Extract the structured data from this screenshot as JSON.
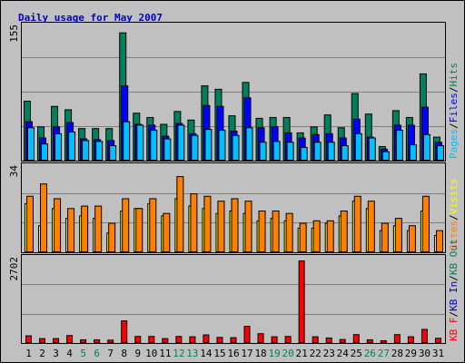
{
  "colors": {
    "background": "#c0c0c0",
    "panel": "#c0c0c0",
    "border": "#000000",
    "title": "#0000cc",
    "grid": "#808080",
    "hits": "#00805c",
    "files": "#0000ff",
    "pages": "#00c0ff",
    "visits": "#ffff00",
    "sites": "#ff8000",
    "kbf": "#ff0000",
    "kbin": "#0000cc",
    "kbout": "#00805c",
    "weekend": "#00805c",
    "weekday": "#000000"
  },
  "chart_data": {
    "type": "bar",
    "title": "Daily usage for May 2007",
    "categories": [
      "1",
      "2",
      "3",
      "4",
      "5",
      "6",
      "7",
      "8",
      "9",
      "10",
      "11",
      "12",
      "13",
      "14",
      "15",
      "16",
      "17",
      "18",
      "19",
      "20",
      "21",
      "22",
      "23",
      "24",
      "25",
      "26",
      "27",
      "28",
      "29",
      "30",
      "31"
    ],
    "weekend_days": [
      "5",
      "6",
      "12",
      "13",
      "19",
      "20",
      "26",
      "27"
    ],
    "panels": [
      {
        "id": "hits-panel",
        "max_label": "155",
        "ylim": [
          0,
          155
        ],
        "legend": [
          "Pages",
          "/",
          "Files",
          "/",
          "Hits"
        ],
        "series": [
          {
            "name": "Hits",
            "values": [
              70,
              40,
              64,
              60,
              38,
              38,
              38,
              150,
              56,
              51,
              43,
              58,
              48,
              88,
              84,
              53,
              92,
              50,
              51,
              51,
              33,
              40,
              54,
              39,
              79,
              55,
              17,
              59,
              51,
              102,
              28
            ]
          },
          {
            "name": "Files",
            "values": [
              46,
              27,
              40,
              45,
              26,
              25,
              24,
              88,
              43,
              42,
              29,
              44,
              32,
              65,
              64,
              35,
              74,
              39,
              40,
              33,
              27,
              31,
              32,
              27,
              49,
              28,
              14,
              42,
              42,
              63,
              22
            ]
          },
          {
            "name": "Pages",
            "values": [
              39,
              20,
              32,
              34,
              24,
              23,
              18,
              46,
              42,
              36,
              26,
              42,
              30,
              37,
              36,
              30,
              39,
              22,
              23,
              22,
              16,
              22,
              22,
              18,
              32,
              27,
              11,
              36,
              19,
              31,
              18
            ]
          }
        ]
      },
      {
        "id": "visits-panel",
        "max_label": "34",
        "ylim": [
          0,
          34
        ],
        "legend": [
          "Sites",
          "/",
          "Visits"
        ],
        "series": [
          {
            "name": "Visits",
            "values": [
              20,
              11,
              18,
              14,
              15,
              14,
              8,
              17,
              18,
              20,
              15,
              22,
              19,
              18,
              16,
              17,
              16,
              13,
              14,
              13,
              10,
              10,
              12,
              15,
              21,
              18,
              9,
              11,
              9,
              17,
              7
            ]
          },
          {
            "name": "Sites",
            "values": [
              23,
              28,
              22,
              18,
              19,
              19,
              12,
              22,
              18,
              22,
              16,
              31,
              24,
              23,
              21,
              22,
              21,
              17,
              17,
              16,
              12,
              13,
              13,
              17,
              23,
              21,
              12,
              14,
              11,
              23,
              9
            ]
          }
        ]
      },
      {
        "id": "kbytes-panel",
        "max_label": "2702",
        "ylim": [
          0,
          2702
        ],
        "legend": [
          "KB F",
          "/",
          "KB In",
          "/",
          "KB Out"
        ],
        "series": [
          {
            "name": "KB F",
            "values": [
              250,
              160,
              160,
              260,
              120,
              120,
              110,
              740,
              230,
              230,
              160,
              230,
              220,
              280,
              200,
              190,
              560,
              320,
              220,
              230,
              2702,
              220,
              180,
              130,
              290,
              120,
              90,
              290,
              220,
              460,
              170
            ]
          }
        ]
      }
    ]
  }
}
